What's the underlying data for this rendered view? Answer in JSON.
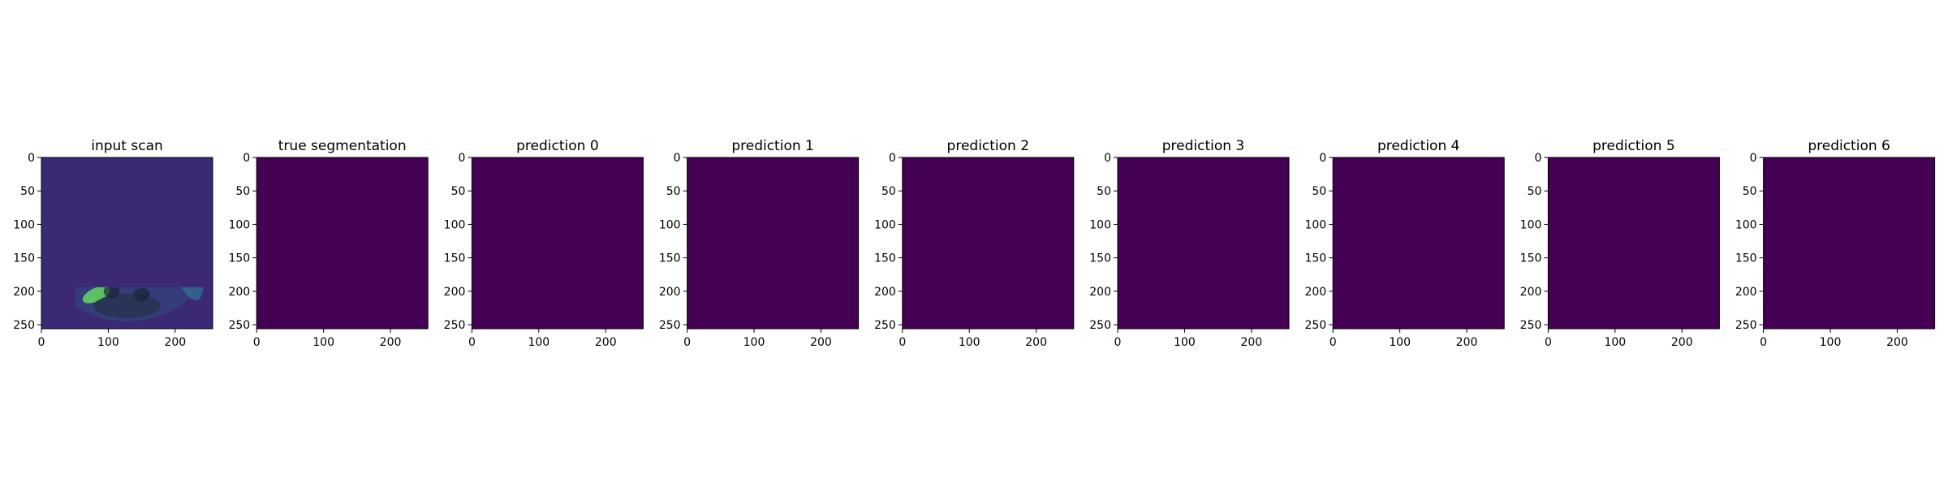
{
  "figure": {
    "panels": [
      {
        "title": "input scan",
        "kind": "scan"
      },
      {
        "title": "true segmentation",
        "kind": "mask",
        "mask": "truth"
      },
      {
        "title": "prediction 0",
        "kind": "mask",
        "mask": "pred"
      },
      {
        "title": "prediction 1",
        "kind": "mask",
        "mask": "pred"
      },
      {
        "title": "prediction 2",
        "kind": "mask",
        "mask": "pred"
      },
      {
        "title": "prediction 3",
        "kind": "mask",
        "mask": "pred"
      },
      {
        "title": "prediction 4",
        "kind": "mask",
        "mask": "pred"
      },
      {
        "title": "prediction 5",
        "kind": "mask",
        "mask": "pred5"
      },
      {
        "title": "prediction 6",
        "kind": "mask",
        "mask": "pred6"
      }
    ],
    "x_ticks": [
      0,
      100,
      200
    ],
    "y_ticks": [
      0,
      50,
      100,
      150,
      200,
      250
    ],
    "image_extent": [
      0,
      256
    ],
    "colors": {
      "background": "#440154",
      "foreground": "#fde725",
      "scan_dark": "#3b2a73",
      "scan_mid": "#2f6d8e",
      "scan_bright": "#5ec962",
      "scan_highlight": "#c8e020"
    }
  }
}
